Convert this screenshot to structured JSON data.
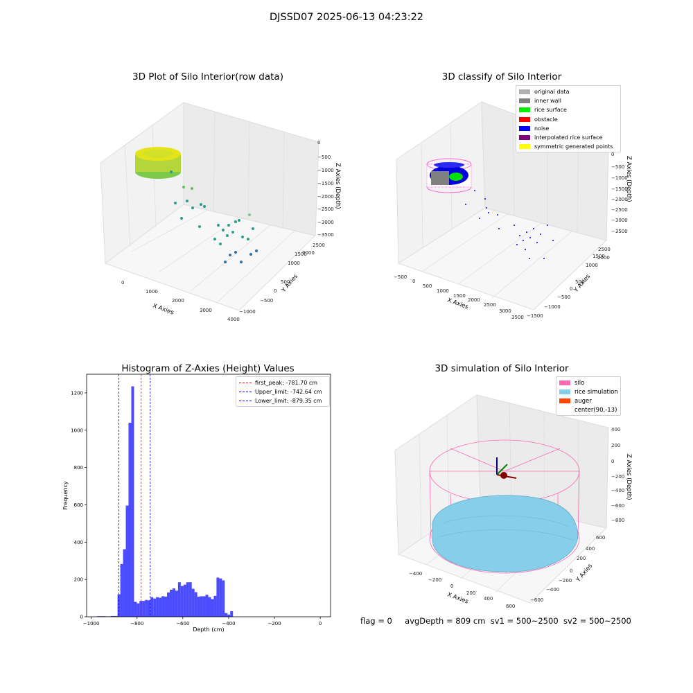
{
  "suptitle": "DJSSD07 2025-06-13 04:23:22",
  "panels": {
    "raw": {
      "title": "3D Plot of Silo Interior(row data)",
      "xlabel": "X Axies",
      "ylabel": "Y Axies",
      "zlabel": "Z Axies (Depth)",
      "xticks": [
        "0",
        "1000",
        "2000",
        "3000",
        "4000"
      ],
      "yticks": [
        "−1000",
        "−500",
        "0",
        "500",
        "1000",
        "1500",
        "2000",
        "2500"
      ],
      "zticks": [
        "0",
        "−500",
        "−1000",
        "−1500",
        "−2000",
        "−2500",
        "−3000",
        "−3500"
      ]
    },
    "classify": {
      "title": "3D classify of Silo Interior",
      "xlabel": "X Axies",
      "ylabel": "Y Axies",
      "zlabel": "Z Axies (Depth)",
      "xticks": [
        "−500",
        "0",
        "500",
        "1000",
        "1500",
        "2000",
        "2500",
        "3000",
        "3500"
      ],
      "yticks": [
        "−1500",
        "−1000",
        "−500",
        "0",
        "500",
        "1000",
        "1500",
        "2000",
        "2500"
      ],
      "zticks": [
        "0",
        "−500",
        "−1000",
        "−1500",
        "−2000",
        "−2500",
        "−3000",
        "−3500"
      ],
      "legend": [
        {
          "label": "original data",
          "color": "#b0b0b0"
        },
        {
          "label": "inner wall",
          "color": "#808080"
        },
        {
          "label": "rice surface",
          "color": "#00ee00"
        },
        {
          "label": "obstacle",
          "color": "#ff0000"
        },
        {
          "label": "noise",
          "color": "#0000ff"
        },
        {
          "label": "interpolated rice surface",
          "color": "#800080"
        },
        {
          "label": "symmetric generated points",
          "color": "#ffff00"
        }
      ]
    },
    "simulation": {
      "title": "3D simulation of Silo Interior",
      "xlabel": "X Axies",
      "ylabel": "Y Axies",
      "zlabel": "Z Axies (Depth)",
      "xticks": [
        "−400",
        "−200",
        "0",
        "200",
        "400",
        "600"
      ],
      "yticks": [
        "−600",
        "−400",
        "−200",
        "0",
        "200",
        "400",
        "600"
      ],
      "zticks": [
        "400",
        "200",
        "0",
        "−200",
        "−400",
        "−600",
        "−800"
      ],
      "legend": [
        {
          "label": "silo",
          "color": "#ff69b4"
        },
        {
          "label": "rice simulation",
          "color": "#87ceeb"
        },
        {
          "label": "auger",
          "color": "#ff4500"
        },
        {
          "label": "center(90,-13)",
          "color": ""
        }
      ]
    }
  },
  "chart_data": {
    "type": "bar",
    "title": "Histogram of Z-Axies (Height) Values",
    "xlabel": "Depth (cm)",
    "ylabel": "Frequency",
    "xlim": [
      -1020,
      45
    ],
    "ylim": [
      0,
      1300
    ],
    "xticks": [
      -1000,
      -800,
      -600,
      -400,
      -200,
      0
    ],
    "yticks": [
      0,
      200,
      400,
      600,
      800,
      1000,
      1200
    ],
    "bar_color": "#0000ff",
    "bin_width": 20,
    "bins": [
      {
        "x": -975,
        "y": 3
      },
      {
        "x": -955,
        "y": 3
      },
      {
        "x": -935,
        "y": 2
      },
      {
        "x": -915,
        "y": 4
      },
      {
        "x": -895,
        "y": 4
      },
      {
        "x": -885,
        "y": 120
      },
      {
        "x": -873,
        "y": 283
      },
      {
        "x": -861,
        "y": 362
      },
      {
        "x": -849,
        "y": 596
      },
      {
        "x": -837,
        "y": 1040
      },
      {
        "x": -825,
        "y": 1235
      },
      {
        "x": -813,
        "y": 80
      },
      {
        "x": -801,
        "y": 72
      },
      {
        "x": -789,
        "y": 85
      },
      {
        "x": -777,
        "y": 85
      },
      {
        "x": -765,
        "y": 90
      },
      {
        "x": -753,
        "y": 88
      },
      {
        "x": -741,
        "y": 105
      },
      {
        "x": -729,
        "y": 98
      },
      {
        "x": -717,
        "y": 105
      },
      {
        "x": -705,
        "y": 102
      },
      {
        "x": -693,
        "y": 110
      },
      {
        "x": -681,
        "y": 108
      },
      {
        "x": -669,
        "y": 130
      },
      {
        "x": -657,
        "y": 145
      },
      {
        "x": -645,
        "y": 152
      },
      {
        "x": -633,
        "y": 140
      },
      {
        "x": -621,
        "y": 185
      },
      {
        "x": -609,
        "y": 165
      },
      {
        "x": -597,
        "y": 172
      },
      {
        "x": -585,
        "y": 185
      },
      {
        "x": -573,
        "y": 185
      },
      {
        "x": -561,
        "y": 150
      },
      {
        "x": -549,
        "y": 132
      },
      {
        "x": -537,
        "y": 108
      },
      {
        "x": -525,
        "y": 110
      },
      {
        "x": -513,
        "y": 110
      },
      {
        "x": -501,
        "y": 118
      },
      {
        "x": -489,
        "y": 105
      },
      {
        "x": -477,
        "y": 95
      },
      {
        "x": -465,
        "y": 112
      },
      {
        "x": -453,
        "y": 210
      },
      {
        "x": -441,
        "y": 205
      },
      {
        "x": -429,
        "y": 195
      },
      {
        "x": -417,
        "y": 20
      },
      {
        "x": -405,
        "y": 12
      },
      {
        "x": -393,
        "y": 30
      }
    ],
    "vlines": [
      {
        "x": -781.7,
        "color": "#ff0000",
        "label": "first_peak: -781.70 cm"
      },
      {
        "x": -742.64,
        "color": "#0000ff",
        "label": "Upper_limit: -742.64 cm"
      },
      {
        "x": -879.35,
        "color": "#0000ff",
        "label": "Lower_limit: -879.35 cm"
      }
    ]
  },
  "status": {
    "flag": "flag = 0",
    "avg": "avgDepth = 809 cm",
    "sv1": "sv1 = 500~2500",
    "sv2": "sv2 = 500~2500"
  }
}
